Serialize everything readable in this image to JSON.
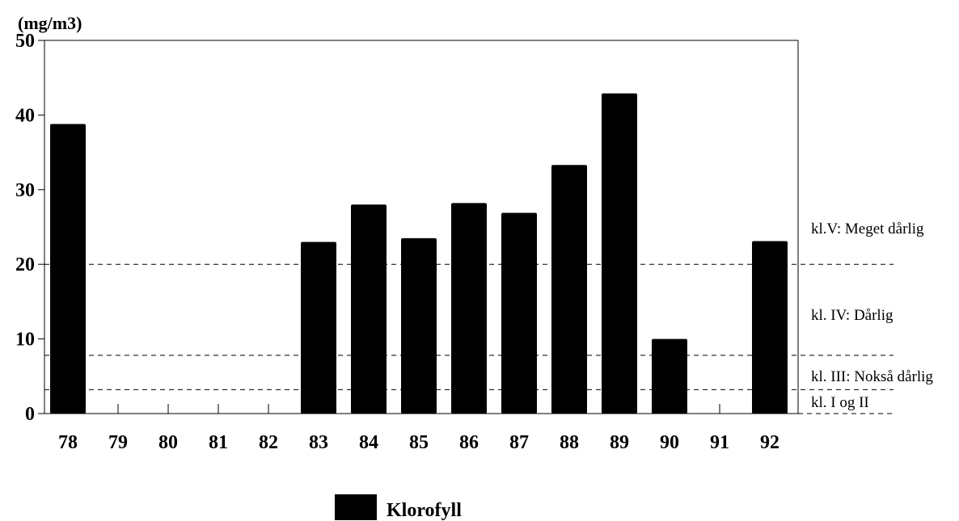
{
  "chart_data": {
    "type": "bar",
    "ylabel": "(mg/m3)",
    "xlabel": "",
    "ylim": [
      0,
      50
    ],
    "yticks": [
      0,
      10,
      20,
      30,
      40,
      50
    ],
    "categories": [
      "78",
      "79",
      "80",
      "81",
      "82",
      "83",
      "84",
      "85",
      "86",
      "87",
      "88",
      "89",
      "90",
      "91",
      "92"
    ],
    "series": [
      {
        "name": "Klorofyll",
        "color": "#000000",
        "values": [
          38.8,
          null,
          null,
          null,
          null,
          23.0,
          28.0,
          23.5,
          28.2,
          26.9,
          33.3,
          42.9,
          10.0,
          null,
          23.1
        ]
      }
    ],
    "thresholds": [
      {
        "value": 20,
        "label": "kl.V: Meget dårlig"
      },
      {
        "value": 7.8,
        "label": "kl. IV: Dårlig"
      },
      {
        "value": 3.2,
        "label": "kl. III: Nokså dårlig"
      },
      {
        "value": 0,
        "label": "kl. I og II"
      }
    ],
    "grid": false,
    "legend_position": "bottom-center"
  }
}
